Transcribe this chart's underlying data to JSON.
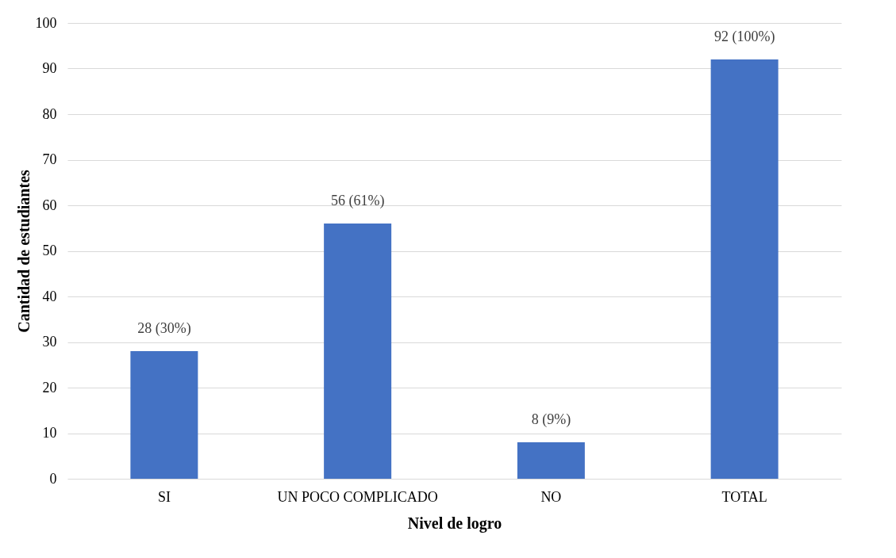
{
  "chart_data": {
    "type": "bar",
    "xlabel": "Nivel de logro",
    "ylabel": "Cantidad de estudiantes",
    "categories": [
      "SI",
      "UN POCO COMPLICADO",
      "NO",
      "TOTAL"
    ],
    "values": [
      28,
      56,
      8,
      92
    ],
    "value_labels": [
      "28 (30%)",
      "56 (61%)",
      "8 (9%)",
      "92 (100%)"
    ],
    "color": "#4472c4",
    "ylim": [
      0,
      100
    ],
    "yticks": [
      0,
      10,
      20,
      30,
      40,
      50,
      60,
      70,
      80,
      90,
      100
    ],
    "grid": "y"
  }
}
